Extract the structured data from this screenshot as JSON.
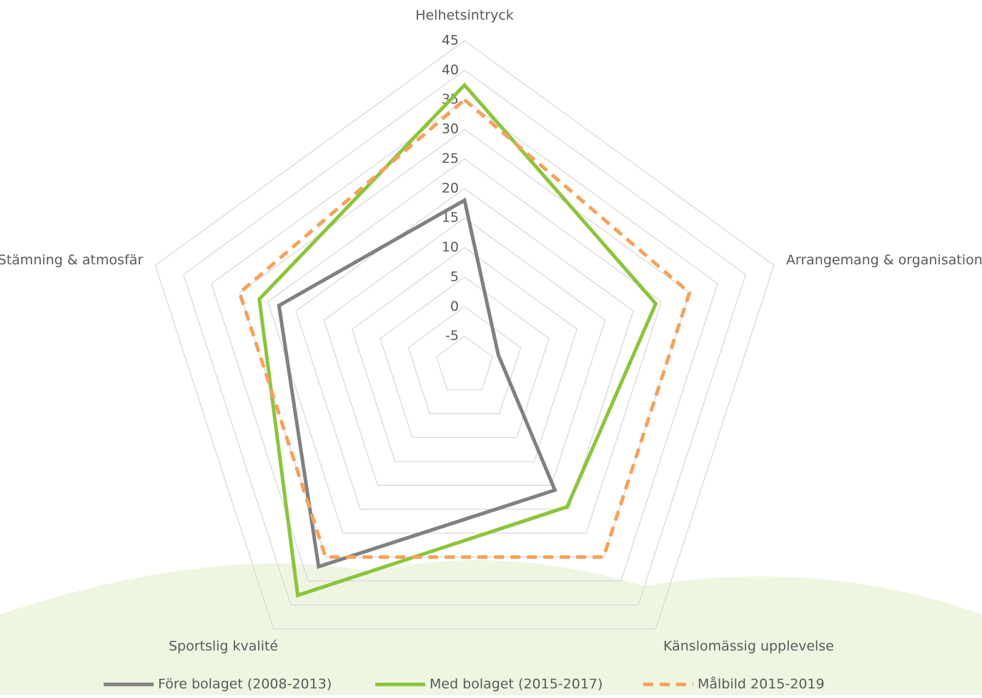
{
  "chart_data": {
    "type": "radar",
    "categories": [
      "Helhetsintryck",
      "Arrangemang & organisation",
      "Känslomässig upplevelse",
      "Sportslig kvalité",
      "Stämning & atmosfär"
    ],
    "rlim": [
      -10,
      45
    ],
    "rticks": [
      -5,
      0,
      5,
      10,
      15,
      20,
      25,
      30,
      35,
      40,
      45
    ],
    "grid": true,
    "legend": "bottom",
    "series": [
      {
        "name": "Före bolaget (2008-2013)",
        "color": "#808080",
        "dash": "solid",
        "values": [
          18,
          -4,
          16,
          32,
          23
        ]
      },
      {
        "name": "Med bolaget (2015-2017)",
        "color": "#8cc43c",
        "dash": "solid",
        "values": [
          37.5,
          24,
          19.5,
          38,
          26.5
        ]
      },
      {
        "name": "Målbild 2015-2019",
        "color": "#f4a25a",
        "dash": "dashed",
        "values": [
          35,
          30,
          30,
          30,
          30
        ]
      }
    ]
  }
}
